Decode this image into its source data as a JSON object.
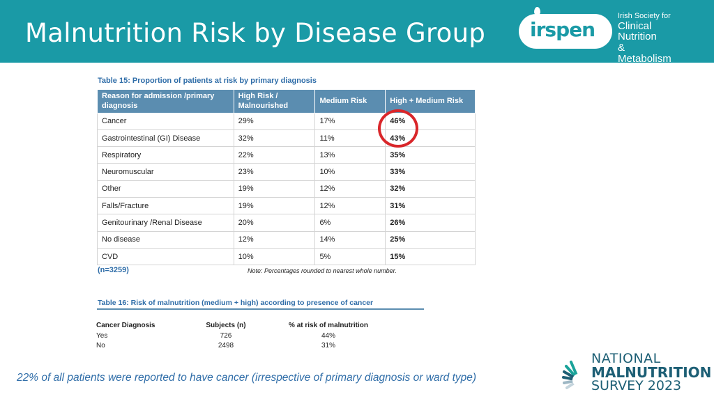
{
  "slide": {
    "title": "Malnutrition Risk by Disease Group",
    "footnote": "22% of all patients were reported to have cancer (irrespective of primary diagnosis or ward type)"
  },
  "logo": {
    "wordmark": "irspen",
    "line1": "Irish Society for",
    "line2": "Clinical Nutrition",
    "line3": "& Metabolism"
  },
  "table15": {
    "caption": "Table 15: Proportion of patients at risk by primary diagnosis",
    "headers": [
      "Reason for admission /primary diagnosis",
      "High Risk / Malnourished",
      "Medium Risk",
      "High + Medium Risk"
    ],
    "rows": [
      [
        "Cancer",
        "29%",
        "17%",
        "46%"
      ],
      [
        "Gastrointestinal (GI) Disease",
        "32%",
        "11%",
        "43%"
      ],
      [
        "Respiratory",
        "22%",
        "13%",
        "35%"
      ],
      [
        "Neuromuscular",
        "23%",
        "10%",
        "33%"
      ],
      [
        "Other",
        "19%",
        "12%",
        "32%"
      ],
      [
        "Falls/Fracture",
        "19%",
        "12%",
        "31%"
      ],
      [
        "Genitourinary /Renal Disease",
        "20%",
        "6%",
        "26%"
      ],
      [
        "No disease",
        "12%",
        "14%",
        "25%"
      ],
      [
        "CVD",
        "10%",
        "5%",
        "15%"
      ]
    ],
    "n_label": "(n=3259)",
    "note": "Note: Percentages rounded to nearest whole number.",
    "highlight_color": "#d9262a"
  },
  "table16": {
    "caption": "Table 16: Risk of malnutrition (medium + high) according to presence of cancer",
    "headers": [
      "Cancer Diagnosis",
      "Subjects (n)",
      "% at risk of malnutrition"
    ],
    "rows": [
      [
        "Yes",
        "726",
        "44%"
      ],
      [
        "No",
        "2498",
        "31%"
      ]
    ]
  },
  "survey_logo": {
    "line1": "NATIONAL",
    "line2": "MALNUTRITION",
    "line3": "SURVEY 2023"
  },
  "colors": {
    "header_bg": "#1a9aa6",
    "table_header_bg": "#5b8db0",
    "caption_blue": "#2f6da8",
    "survey_green": "#1aa39a",
    "survey_navy": "#1d5f75"
  }
}
